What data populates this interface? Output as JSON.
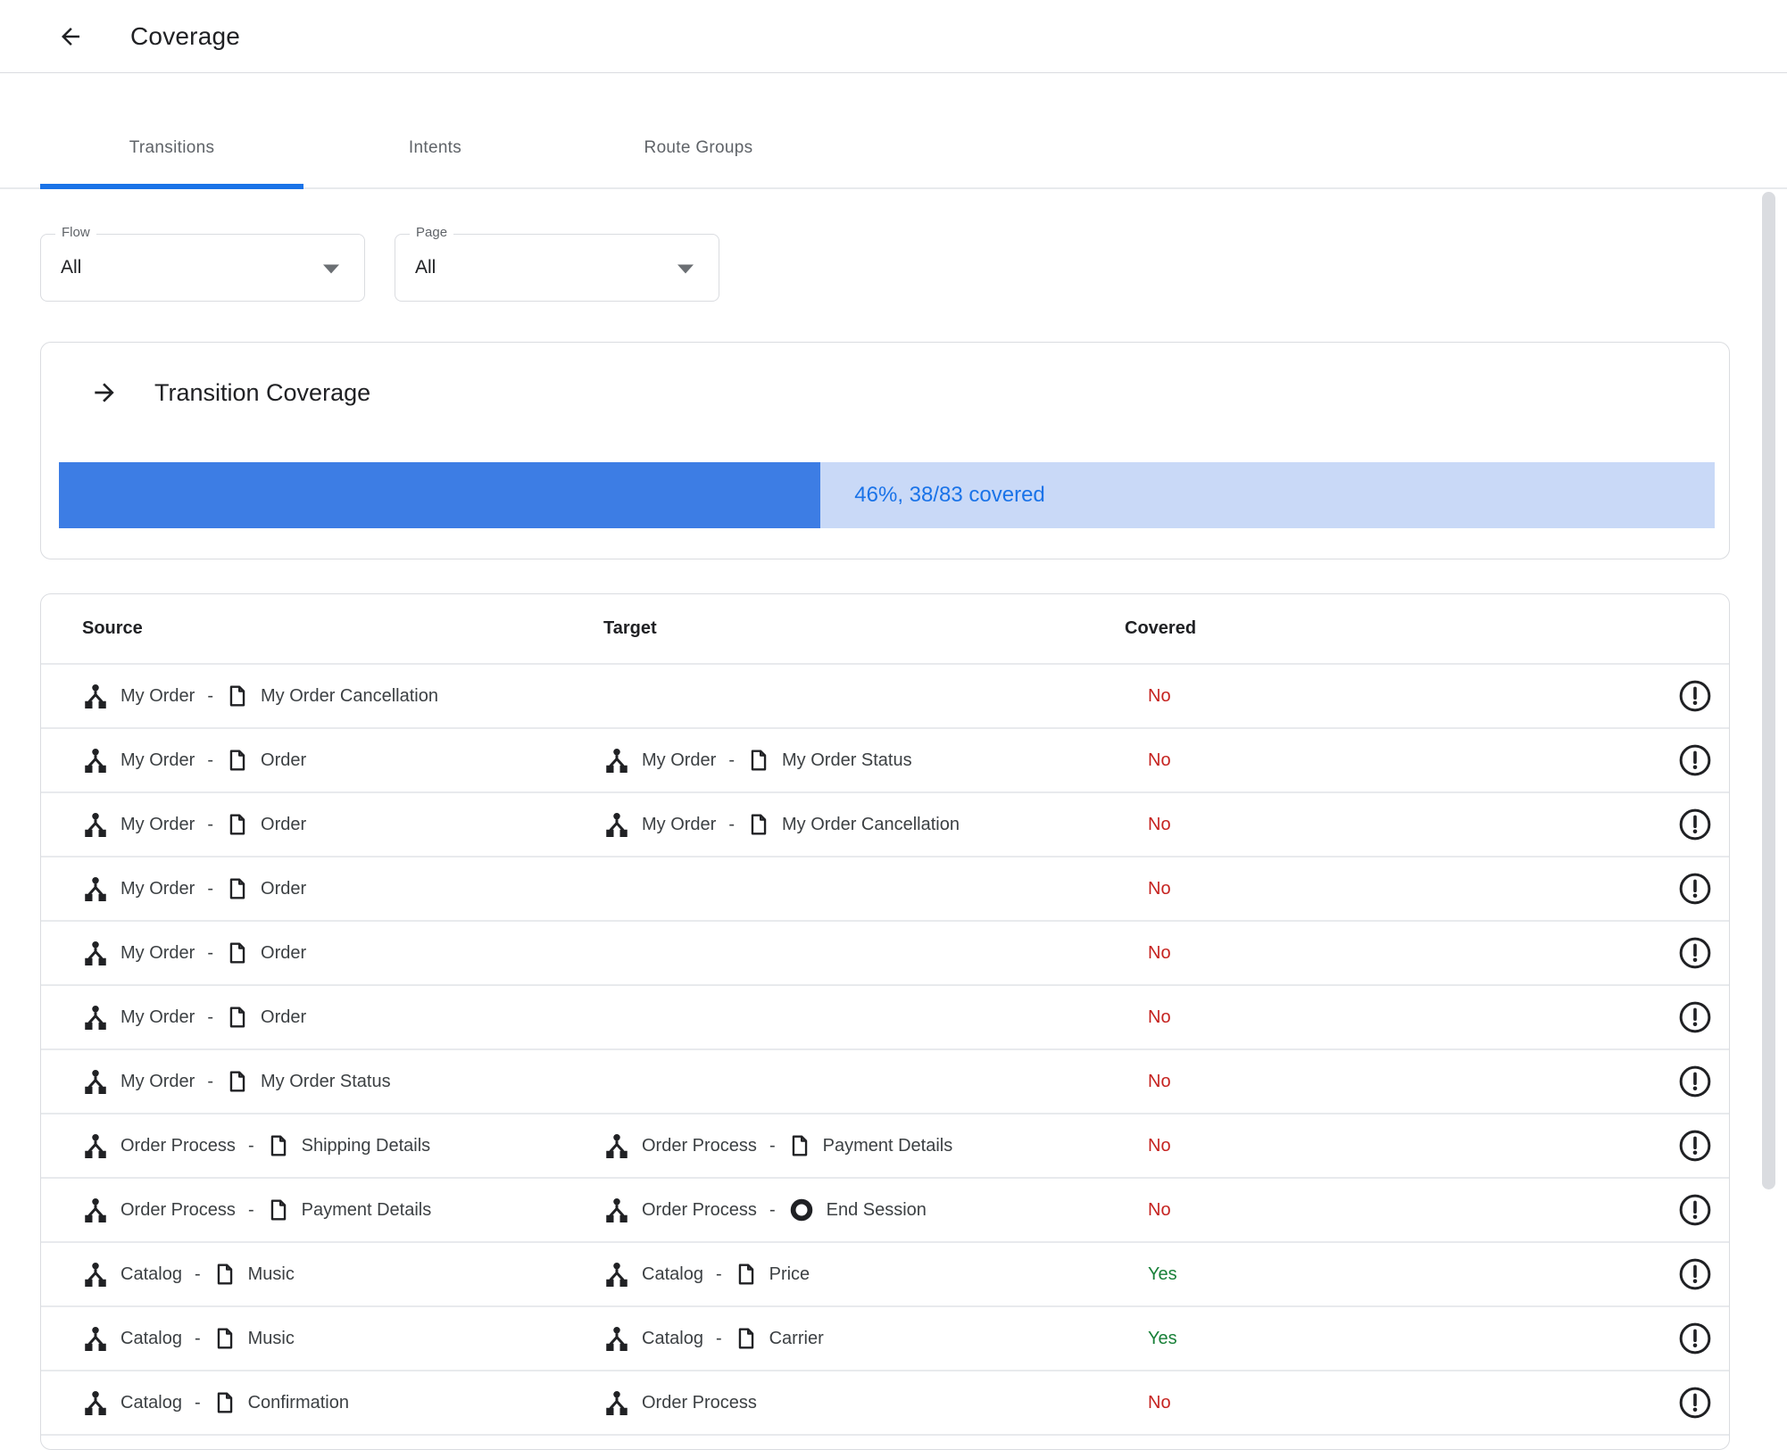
{
  "header": {
    "title": "Coverage",
    "back_icon": "arrow-left-icon"
  },
  "tabs": [
    {
      "label": "Transitions",
      "active": true
    },
    {
      "label": "Intents",
      "active": false
    },
    {
      "label": "Route Groups",
      "active": false
    }
  ],
  "filters": [
    {
      "label": "Flow",
      "value": "All"
    },
    {
      "label": "Page",
      "value": "All"
    }
  ],
  "coverage_card": {
    "icon": "arrow-right-icon",
    "title": "Transition Coverage",
    "percent": 46,
    "label": "46%, 38/83 covered"
  },
  "table": {
    "columns": [
      "Source",
      "Target",
      "Covered"
    ],
    "separator": "-",
    "row_icons": {
      "flow": "flow-icon",
      "page": "page-icon",
      "end_session": "end-session-icon",
      "status": "alert-circle-icon"
    },
    "rows": [
      {
        "source": {
          "flow": "My Order",
          "page": "My Order Cancellation"
        },
        "target": null,
        "covered": "No"
      },
      {
        "source": {
          "flow": "My Order",
          "page": "Order"
        },
        "target": {
          "flow": "My Order",
          "page": "My Order Status"
        },
        "covered": "No"
      },
      {
        "source": {
          "flow": "My Order",
          "page": "Order"
        },
        "target": {
          "flow": "My Order",
          "page": "My Order Cancellation"
        },
        "covered": "No"
      },
      {
        "source": {
          "flow": "My Order",
          "page": "Order"
        },
        "target": null,
        "covered": "No"
      },
      {
        "source": {
          "flow": "My Order",
          "page": "Order"
        },
        "target": null,
        "covered": "No"
      },
      {
        "source": {
          "flow": "My Order",
          "page": "Order"
        },
        "target": null,
        "covered": "No"
      },
      {
        "source": {
          "flow": "My Order",
          "page": "My Order Status"
        },
        "target": null,
        "covered": "No"
      },
      {
        "source": {
          "flow": "Order Process",
          "page": "Shipping Details"
        },
        "target": {
          "flow": "Order Process",
          "page": "Payment Details"
        },
        "covered": "No"
      },
      {
        "source": {
          "flow": "Order Process",
          "page": "Payment Details"
        },
        "target": {
          "flow": "Order Process",
          "page": "End Session",
          "page_type": "end_session"
        },
        "covered": "No"
      },
      {
        "source": {
          "flow": "Catalog",
          "page": "Music"
        },
        "target": {
          "flow": "Catalog",
          "page": "Price"
        },
        "covered": "Yes"
      },
      {
        "source": {
          "flow": "Catalog",
          "page": "Music"
        },
        "target": {
          "flow": "Catalog",
          "page": "Carrier"
        },
        "covered": "Yes"
      },
      {
        "source": {
          "flow": "Catalog",
          "page": "Confirmation"
        },
        "target": {
          "flow": "Order Process"
        },
        "covered": "No"
      }
    ]
  },
  "colors": {
    "accent_blue": "#1a73e8",
    "progress_fill": "#3d7de4",
    "progress_track": "#c9d9f7",
    "covered_no": "#c5221f",
    "covered_yes": "#188038"
  }
}
